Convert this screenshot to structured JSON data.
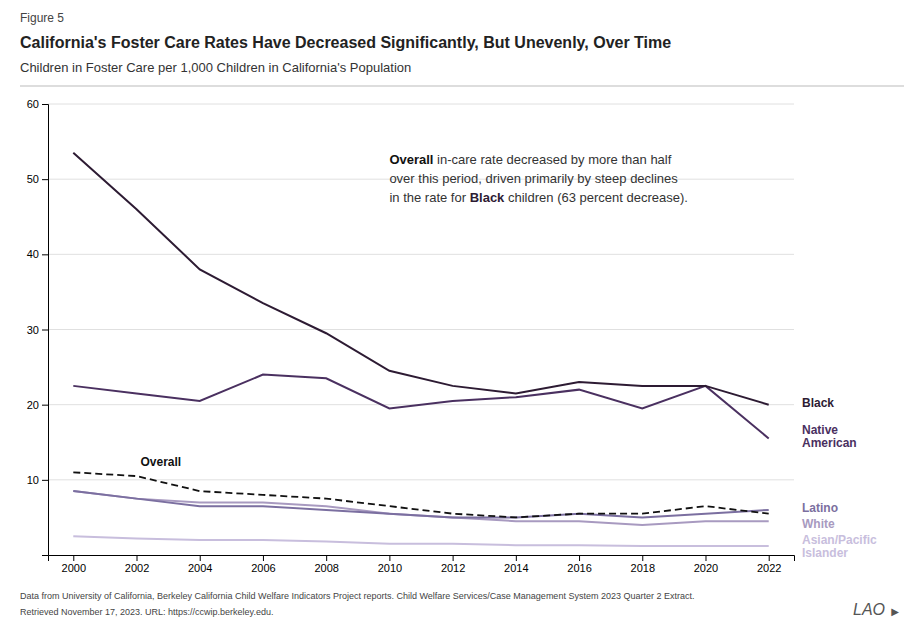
{
  "chart_data": {
    "type": "line",
    "figure_label": "Figure 5",
    "title": "California's Foster Care Rates Have Decreased Significantly, But Unevenly, Over Time",
    "subtitle": "Children in Foster Care per 1,000 Children in California's Population",
    "x": [
      2000,
      2002,
      2004,
      2006,
      2008,
      2010,
      2012,
      2014,
      2016,
      2018,
      2020,
      2022
    ],
    "xlim": [
      1999.2,
      2022.8
    ],
    "xticks": [
      2000,
      2002,
      2004,
      2006,
      2008,
      2010,
      2012,
      2014,
      2016,
      2018,
      2020,
      2022
    ],
    "ylim": [
      0,
      60
    ],
    "yticks": [
      10,
      20,
      30,
      40,
      50,
      60
    ],
    "grid": true,
    "series": [
      {
        "name": "Asian/Pacific\nIslander",
        "color": "#c8bedd",
        "values": [
          2.5,
          2.2,
          2.0,
          2.0,
          1.8,
          1.5,
          1.5,
          1.3,
          1.3,
          1.2,
          1.2,
          1.2
        ]
      },
      {
        "name": "White",
        "color": "#a89ac0",
        "values": [
          8.5,
          7.5,
          7.0,
          7.0,
          6.5,
          5.5,
          5.0,
          4.5,
          4.5,
          4.0,
          4.5,
          4.5
        ]
      },
      {
        "name": "Latino",
        "color": "#7b6fa0",
        "values": [
          8.5,
          7.5,
          6.5,
          6.5,
          6.0,
          5.5,
          5.0,
          5.0,
          5.5,
          5.0,
          5.5,
          6.0
        ]
      },
      {
        "name": "Native\nAmerican",
        "color": "#4a3060",
        "values": [
          22.5,
          21.5,
          20.5,
          24.0,
          23.5,
          19.5,
          20.5,
          21.0,
          22.0,
          19.5,
          22.5,
          15.5
        ]
      },
      {
        "name": "Black",
        "color": "#2d1b33",
        "values": [
          53.5,
          46.0,
          38.0,
          33.5,
          29.5,
          24.5,
          22.5,
          21.5,
          23.0,
          22.5,
          22.5,
          20.0
        ]
      },
      {
        "name": "Overall",
        "color": "#111111",
        "line_style": "dashed",
        "values": [
          11.0,
          10.5,
          8.5,
          8.0,
          7.5,
          6.5,
          5.5,
          5.0,
          5.5,
          5.5,
          6.5,
          5.5
        ]
      }
    ],
    "annotations": [
      "Overall in-care rate decreased by more than half",
      "over this period, driven primarily by steep declines",
      "in the rate for Black children (63 percent decrease)."
    ],
    "footer": [
      "Data from University of California, Berkeley California Child Welfare Indicators Project reports. Child Welfare Services/Case Management System 2023 Quarter 2 Extract.",
      "Retrieved November 17, 2023. URL: https://ccwip.berkeley.edu."
    ],
    "logo": [
      "LAO",
      "▶"
    ]
  }
}
